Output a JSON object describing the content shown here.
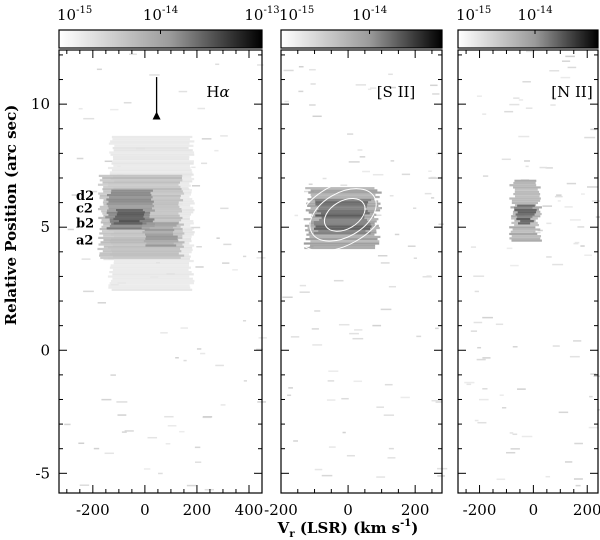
{
  "chart_data": {
    "type": "heatmap",
    "ylabel": "Relative Position (arc sec)",
    "xlabel_main": "V",
    "xlabel_sub": "r",
    "xlabel_rest": " (LSR) (km s",
    "xlabel_sup": "-1",
    "xlabel_end": ")",
    "ylim": [
      12.2,
      -5.8
    ],
    "yticks_major": [
      -5,
      0,
      5,
      10
    ],
    "yticks_major_labels": [
      "-5",
      "0",
      "5",
      "10"
    ],
    "colorscale": "gray_r",
    "panels": [
      {
        "id": "halpha",
        "label_main": "H",
        "label_greek": "α",
        "xlim": [
          -330,
          450
        ],
        "xticks": [
          -200,
          0,
          200,
          400
        ],
        "xtick_labels": [
          "-200",
          "0",
          "200",
          "400"
        ],
        "colorbar_ticks": [
          -15,
          -14,
          -13
        ],
        "colorbar_labels_base": [
          "10",
          "10",
          "10"
        ],
        "colorbar_labels_exp": [
          "-15",
          "-14",
          "-13"
        ],
        "knot_labels": [
          "a2",
          "b2",
          "c2",
          "d2"
        ],
        "knot_positions": [
          4.5,
          5.2,
          5.8,
          6.3
        ],
        "arrow_velocity": 45,
        "arrow_from": 11.1,
        "arrow_to": 9.7,
        "emission": [
          {
            "v": [
              -130,
              180
            ],
            "y": [
              2.5,
              8.8
            ],
            "level": 0.12
          },
          {
            "v": [
              -170,
              140
            ],
            "y": [
              3.8,
              7.2
            ],
            "level": 0.3
          },
          {
            "v": [
              -140,
              30
            ],
            "y": [
              5.0,
              6.6
            ],
            "level": 0.55
          },
          {
            "v": [
              -110,
              -10
            ],
            "y": [
              5.2,
              5.8
            ],
            "level": 0.9
          },
          {
            "v": [
              0,
              120
            ],
            "y": [
              4.3,
              5.3
            ],
            "level": 0.45
          }
        ]
      },
      {
        "id": "sii",
        "label_main": "[S II]",
        "xlim": [
          -200,
          280
        ],
        "xticks": [
          -200,
          0,
          200
        ],
        "xtick_labels": [
          "-200",
          "0",
          "200"
        ],
        "colorbar_ticks": [
          -15,
          -14
        ],
        "colorbar_labels_base": [
          "10",
          "10"
        ],
        "colorbar_labels_exp": [
          "-15",
          "-14"
        ],
        "emission": [
          {
            "v": [
              -120,
              90
            ],
            "y": [
              4.2,
              6.7
            ],
            "level": 0.45
          },
          {
            "v": [
              -90,
              60
            ],
            "y": [
              4.8,
              6.2
            ],
            "level": 0.7
          }
        ],
        "contour_levels": 3
      },
      {
        "id": "nii",
        "label_main": "[N II]",
        "xlim": [
          -280,
          240
        ],
        "xticks": [
          -200,
          0,
          200
        ],
        "xtick_labels": [
          "-200",
          "0",
          "200"
        ],
        "colorbar_ticks": [
          -15,
          -14
        ],
        "colorbar_labels_base": [
          "10",
          "10"
        ],
        "colorbar_labels_exp": [
          "-15",
          "-14"
        ],
        "emission": [
          {
            "v": [
              -80,
              20
            ],
            "y": [
              4.5,
              7.0
            ],
            "level": 0.4
          },
          {
            "v": [
              -60,
              0
            ],
            "y": [
              5.2,
              6.0
            ],
            "level": 0.7
          }
        ]
      }
    ]
  }
}
